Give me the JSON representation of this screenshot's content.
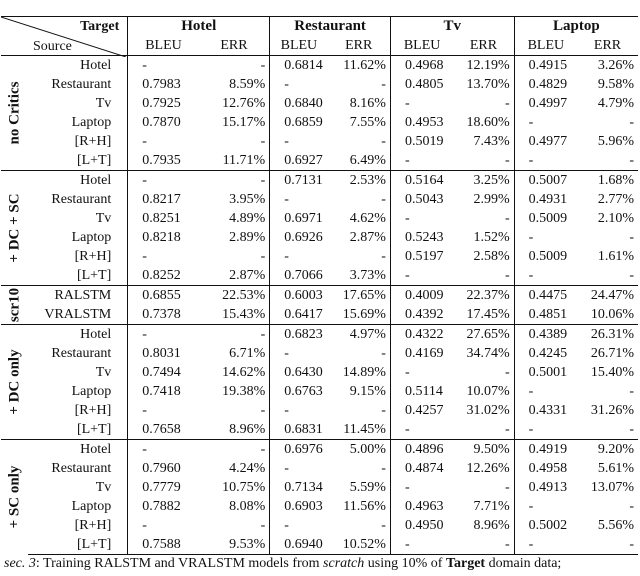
{
  "header": {
    "target_label": "Target",
    "source_label": "Source",
    "domains": [
      "Hotel",
      "Restaurant",
      "Tv",
      "Laptop"
    ],
    "metric_bleu": "BLEU",
    "metric_err": "ERR"
  },
  "groups": [
    {
      "label": "no Critics",
      "rows": [
        {
          "source": "Hotel",
          "cells": [
            "-",
            "-",
            "0.6814",
            "11.62%",
            "0.4968",
            "12.19%",
            "0.4915",
            "3.26%"
          ]
        },
        {
          "source": "Restaurant",
          "cells": [
            "0.7983",
            "8.59%",
            "-",
            "-",
            "0.4805",
            "13.70%",
            "0.4829",
            "9.58%"
          ]
        },
        {
          "source": "Tv",
          "cells": [
            "0.7925",
            "12.76%",
            "0.6840",
            "8.16%",
            "-",
            "-",
            "0.4997",
            "4.79%"
          ]
        },
        {
          "source": "Laptop",
          "cells": [
            "0.7870",
            "15.17%",
            "0.6859",
            "7.55%",
            "0.4953",
            "18.60%",
            "-",
            "-"
          ]
        },
        {
          "source": "[R+H]",
          "cells": [
            "-",
            "-",
            "-",
            "-",
            "0.5019",
            "7.43%",
            "0.4977",
            "5.96%"
          ]
        },
        {
          "source": "[L+T]",
          "cells": [
            "0.7935",
            "11.71%",
            "0.6927",
            "6.49%",
            "-",
            "-",
            "-",
            "-"
          ]
        }
      ]
    },
    {
      "label": "+ DC + SC",
      "rows": [
        {
          "source": "Hotel",
          "cells": [
            "-",
            "-",
            "0.7131",
            "2.53%",
            "0.5164",
            "3.25%",
            "0.5007",
            "1.68%"
          ]
        },
        {
          "source": "Restaurant",
          "cells": [
            "0.8217",
            "3.95%",
            "-",
            "-",
            "0.5043",
            "2.99%",
            "0.4931",
            "2.77%"
          ]
        },
        {
          "source": "Tv",
          "cells": [
            "0.8251",
            "4.89%",
            "0.6971",
            "4.62%",
            "-",
            "-",
            "0.5009",
            "2.10%"
          ]
        },
        {
          "source": "Laptop",
          "cells": [
            "0.8218",
            "2.89%",
            "0.6926",
            "2.87%",
            "0.5243",
            "1.52%",
            "-",
            "-"
          ]
        },
        {
          "source": "[R+H]",
          "cells": [
            "-",
            "-",
            "-",
            "-",
            "0.5197",
            "2.58%",
            "0.5009",
            "1.61%"
          ]
        },
        {
          "source": "[L+T]",
          "cells": [
            "0.8252",
            "2.87%",
            "0.7066",
            "3.73%",
            "-",
            "-",
            "-",
            "-"
          ]
        }
      ]
    },
    {
      "label": "scr10",
      "rows": [
        {
          "source": "RALSTM",
          "cells": [
            "0.6855",
            "22.53%",
            "0.6003",
            "17.65%",
            "0.4009",
            "22.37%",
            "0.4475",
            "24.47%"
          ]
        },
        {
          "source": "VRALSTM",
          "cells": [
            "0.7378",
            "15.43%",
            "0.6417",
            "15.69%",
            "0.4392",
            "17.45%",
            "0.4851",
            "10.06%"
          ]
        }
      ]
    },
    {
      "label": "+ DC only",
      "rows": [
        {
          "source": "Hotel",
          "cells": [
            "-",
            "-",
            "0.6823",
            "4.97%",
            "0.4322",
            "27.65%",
            "0.4389",
            "26.31%"
          ]
        },
        {
          "source": "Restaurant",
          "cells": [
            "0.8031",
            "6.71%",
            "-",
            "-",
            "0.4169",
            "34.74%",
            "0.4245",
            "26.71%"
          ]
        },
        {
          "source": "Tv",
          "cells": [
            "0.7494",
            "14.62%",
            "0.6430",
            "14.89%",
            "-",
            "-",
            "0.5001",
            "15.40%"
          ]
        },
        {
          "source": "Laptop",
          "cells": [
            "0.7418",
            "19.38%",
            "0.6763",
            "9.15%",
            "0.5114",
            "10.07%",
            "-",
            "-"
          ]
        },
        {
          "source": "[R+H]",
          "cells": [
            "-",
            "-",
            "-",
            "-",
            "0.4257",
            "31.02%",
            "0.4331",
            "31.26%"
          ]
        },
        {
          "source": "[L+T]",
          "cells": [
            "0.7658",
            "8.96%",
            "0.6831",
            "11.45%",
            "-",
            "-",
            "-",
            "-"
          ]
        }
      ]
    },
    {
      "label": "+ SC only",
      "rows": [
        {
          "source": "Hotel",
          "cells": [
            "-",
            "-",
            "0.6976",
            "5.00%",
            "0.4896",
            "9.50%",
            "0.4919",
            "9.20%"
          ]
        },
        {
          "source": "Restaurant",
          "cells": [
            "0.7960",
            "4.24%",
            "-",
            "-",
            "0.4874",
            "12.26%",
            "0.4958",
            "5.61%"
          ]
        },
        {
          "source": "Tv",
          "cells": [
            "0.7779",
            "10.75%",
            "0.7134",
            "5.59%",
            "-",
            "-",
            "0.4913",
            "13.07%"
          ]
        },
        {
          "source": "Laptop",
          "cells": [
            "0.7882",
            "8.08%",
            "0.6903",
            "11.56%",
            "0.4963",
            "7.71%",
            "-",
            "-"
          ]
        },
        {
          "source": "[R+H]",
          "cells": [
            "-",
            "-",
            "-",
            "-",
            "0.4950",
            "8.96%",
            "0.5002",
            "5.56%"
          ]
        },
        {
          "source": "[L+T]",
          "cells": [
            "0.7588",
            "9.53%",
            "0.6940",
            "10.52%",
            "-",
            "-",
            "-",
            "-"
          ]
        }
      ]
    }
  ],
  "caption": {
    "part1": "sec. 3",
    "part2": ": Training RALSTM and VRALSTM models from ",
    "part3": "scratch",
    "part4": " using ",
    "part5": "10%",
    "part6": " of ",
    "part7": "Target",
    "part8": " domain data;"
  }
}
